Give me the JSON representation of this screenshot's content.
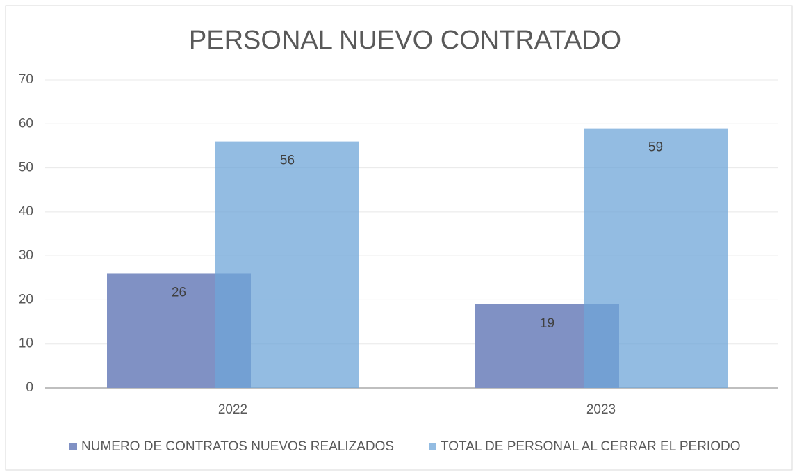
{
  "chart_data": {
    "type": "bar",
    "title": "PERSONAL NUEVO CONTRATADO",
    "categories": [
      "2022",
      "2023"
    ],
    "series": [
      {
        "name": "NUMERO DE CONTRATOS NUEVOS REALIZADOS",
        "color": "#8091c4",
        "values": [
          26,
          19
        ]
      },
      {
        "name": "TOTAL DE PERSONAL AL CERRAR EL PERIODO",
        "color": "#6fa6d8",
        "values": [
          56,
          59
        ]
      }
    ],
    "ylim": [
      0,
      70
    ],
    "yticks": [
      0,
      10,
      20,
      30,
      40,
      50,
      60,
      70
    ],
    "grid": true,
    "legend": "bottom"
  }
}
